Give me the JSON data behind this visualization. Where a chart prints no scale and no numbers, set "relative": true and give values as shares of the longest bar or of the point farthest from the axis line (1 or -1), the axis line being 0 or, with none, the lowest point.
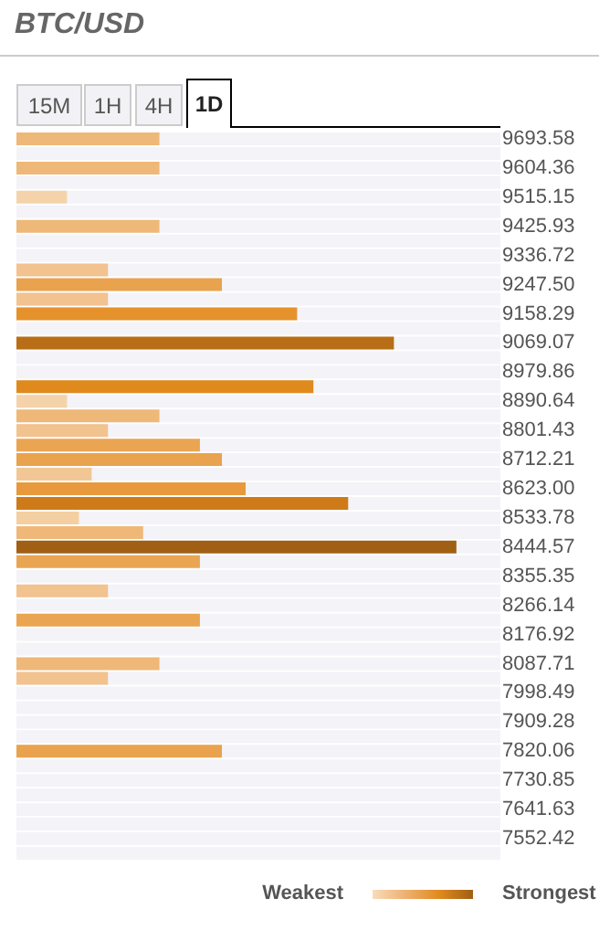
{
  "chart_data": {
    "type": "bar",
    "orientation": "horizontal",
    "relative": true,
    "title": "BTC/USD",
    "categories": [
      "9693.58",
      null,
      "9604.36",
      null,
      "9515.15",
      null,
      "9425.93",
      null,
      "9336.72",
      null,
      "9247.50",
      null,
      "9158.29",
      null,
      "9069.07",
      null,
      "8979.86",
      null,
      "8890.64",
      null,
      "8801.43",
      null,
      "8712.21",
      null,
      "8623.00",
      null,
      "8533.78",
      null,
      "8444.57",
      null,
      "8355.35",
      null,
      "8266.14",
      null,
      "8176.92",
      null,
      "8087.71",
      null,
      "7998.49",
      null,
      "7909.28",
      null,
      "7820.06",
      null,
      "7730.85",
      null,
      "7641.63",
      null,
      "7552.42",
      null
    ],
    "values": [
      0.325,
      null,
      0.325,
      null,
      0.115,
      null,
      0.325,
      null,
      null,
      0.208,
      0.467,
      0.208,
      0.638,
      null,
      0.858,
      null,
      null,
      0.675,
      0.115,
      0.325,
      0.208,
      0.417,
      0.467,
      0.171,
      0.521,
      0.754,
      0.142,
      0.288,
      1,
      0.417,
      null,
      0.208,
      null,
      0.417,
      null,
      null,
      0.325,
      0.208,
      null,
      null,
      null,
      null,
      0.467,
      null,
      null,
      null,
      null,
      null,
      null,
      null
    ],
    "colors": [
      "#eeb878",
      null,
      "#eeb878",
      null,
      "#f5d3aa",
      null,
      "#eeb878",
      null,
      null,
      "#f2c28f",
      "#e9a24e",
      "#f2c28f",
      "#e5922c",
      null,
      "#b86e16",
      null,
      null,
      "#e0891c",
      "#f5d3aa",
      "#eeb878",
      "#f2c28f",
      "#eaa552",
      "#e9a24e",
      "#f2c796",
      "#e8993d",
      "#cf7a18",
      "#f4cfa2",
      "#efb878",
      "#a05f14",
      "#eaa552",
      null,
      "#f2c28f",
      null,
      "#eaa552",
      null,
      null,
      "#eeb878",
      "#f2c28f",
      null,
      null,
      null,
      null,
      "#e9a24e",
      null,
      null,
      null,
      null,
      null,
      null,
      null
    ],
    "annotations": [
      "15M",
      "1H",
      "4H",
      "1D",
      "Weakest",
      "Strongest"
    ]
  }
}
